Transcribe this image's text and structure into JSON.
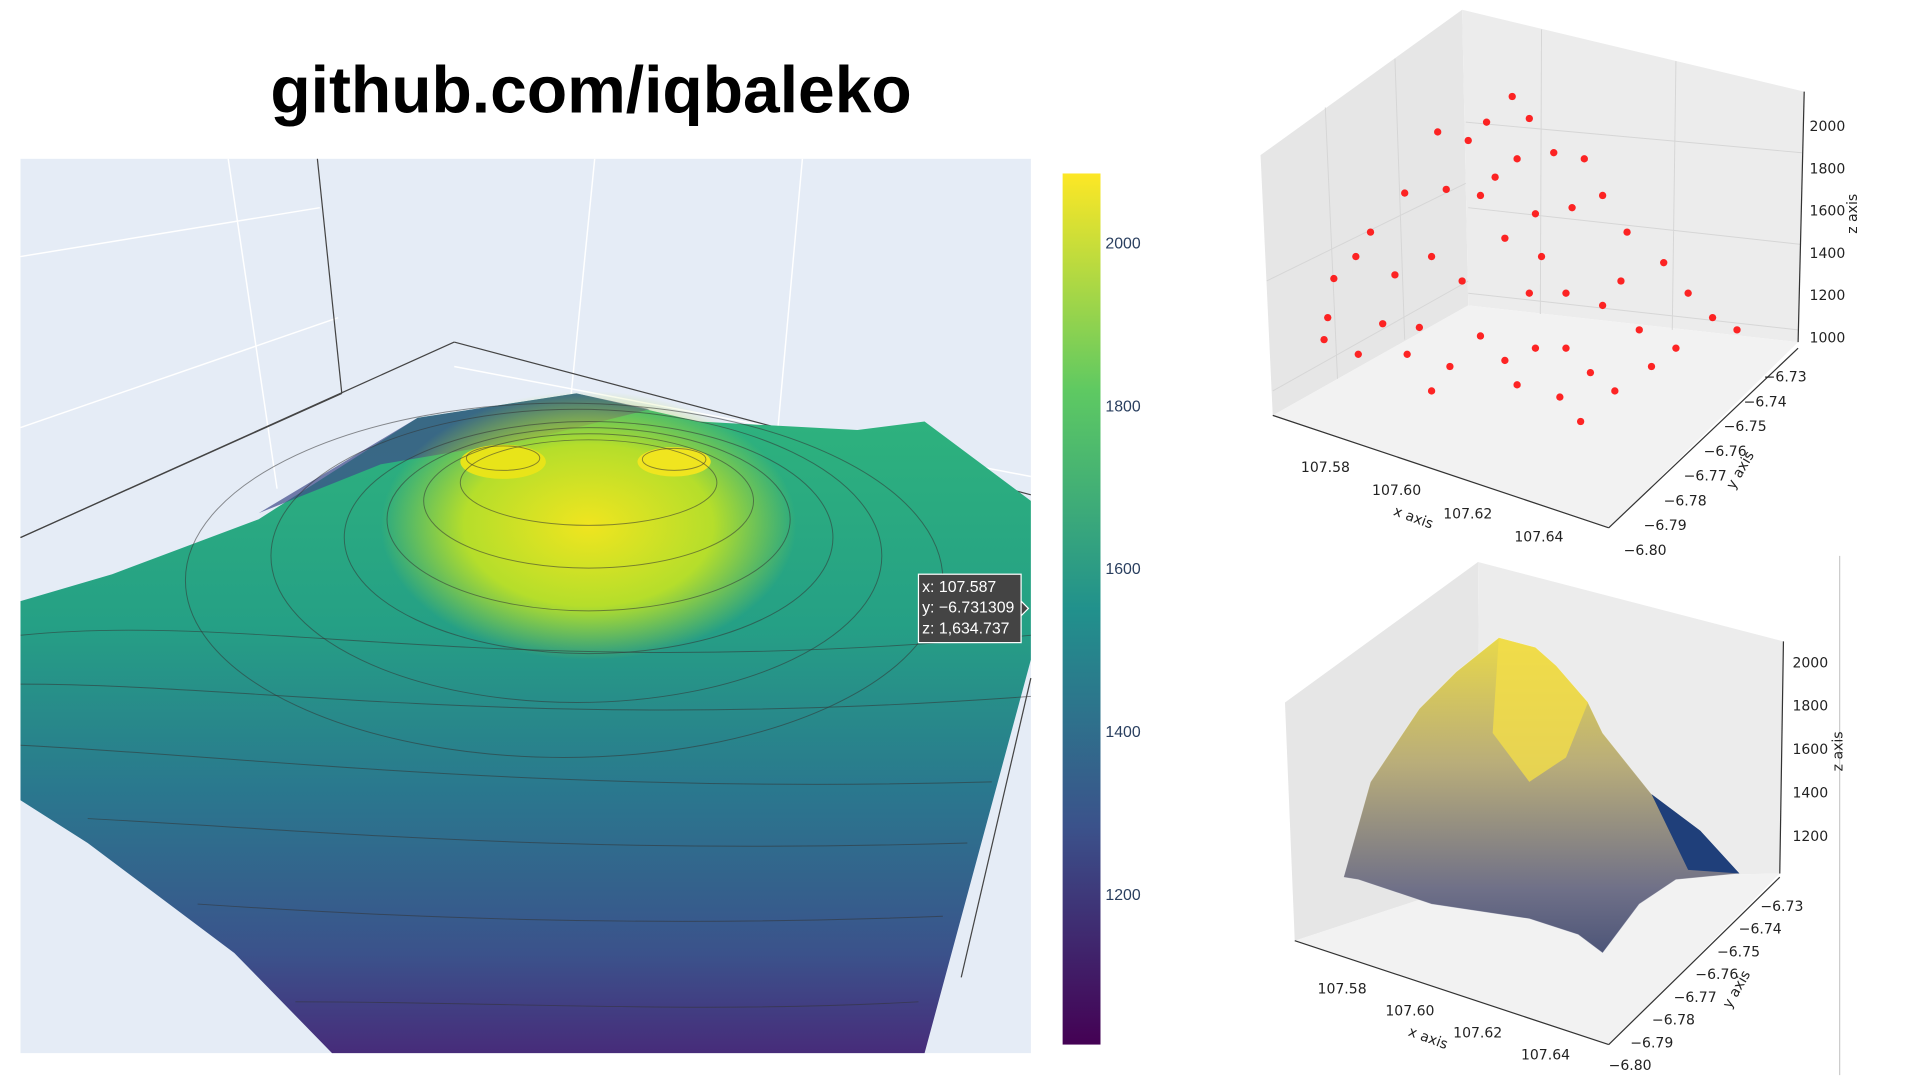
{
  "title": "github.com/iqbaleko",
  "chart_data": [
    {
      "type": "surface",
      "colorbar": {
        "ylim": [
          1017,
          2087
        ],
        "yticks": [
          1200,
          1400,
          1600,
          1800,
          2000
        ],
        "colors": [
          "#440154",
          "#3b528b",
          "#21918c",
          "#5ec962",
          "#fde725"
        ]
      },
      "hover": [
        "x: 107.587",
        "y: −6.731309",
        "z: 1,634.737"
      ]
    },
    {
      "type": "scatter3d",
      "color": "#ff0000",
      "xlabel": "x axis",
      "ylabel": "y axis",
      "zlabel": "z axis",
      "xlim": [
        107.57,
        107.65
      ],
      "xticks": [
        {
          "value": 107.58,
          "label": "107.58"
        },
        {
          "value": 107.6,
          "label": "107.60"
        },
        {
          "value": 107.62,
          "label": "107.62"
        },
        {
          "value": 107.64,
          "label": "107.64"
        }
      ],
      "ylim": [
        -6.725,
        -6.805
      ],
      "yticks": [
        {
          "value": -6.73,
          "label": "−6.73"
        },
        {
          "value": -6.74,
          "label": "−6.74"
        },
        {
          "value": -6.75,
          "label": "−6.75"
        },
        {
          "value": -6.76,
          "label": "−6.76"
        },
        {
          "value": -6.77,
          "label": "−6.77"
        },
        {
          "value": -6.78,
          "label": "−6.78"
        },
        {
          "value": -6.79,
          "label": "−6.79"
        },
        {
          "value": -6.8,
          "label": "−6.80"
        }
      ],
      "zlim": [
        950,
        2100
      ],
      "zticks": [
        1000,
        1200,
        1400,
        1600,
        1800,
        2000
      ]
    },
    {
      "type": "trisurf3d",
      "xlabel": "x axis",
      "ylabel": "y axis",
      "zlabel": "z axis",
      "xlim": [
        107.57,
        107.65
      ],
      "xticks": [
        {
          "value": 107.58,
          "label": "107.58"
        },
        {
          "value": 107.6,
          "label": "107.60"
        },
        {
          "value": 107.62,
          "label": "107.62"
        },
        {
          "value": 107.64,
          "label": "107.64"
        }
      ],
      "ylim": [
        -6.725,
        -6.805
      ],
      "yticks": [
        {
          "value": -6.73,
          "label": "−6.73"
        },
        {
          "value": -6.74,
          "label": "−6.74"
        },
        {
          "value": -6.75,
          "label": "−6.75"
        },
        {
          "value": -6.76,
          "label": "−6.76"
        },
        {
          "value": -6.77,
          "label": "−6.77"
        },
        {
          "value": -6.78,
          "label": "−6.78"
        },
        {
          "value": -6.79,
          "label": "−6.79"
        },
        {
          "value": -6.8,
          "label": "−6.80"
        }
      ],
      "zlim": [
        1100,
        2100
      ],
      "zticks": [
        1200,
        1400,
        1600,
        1800,
        2000
      ]
    }
  ]
}
